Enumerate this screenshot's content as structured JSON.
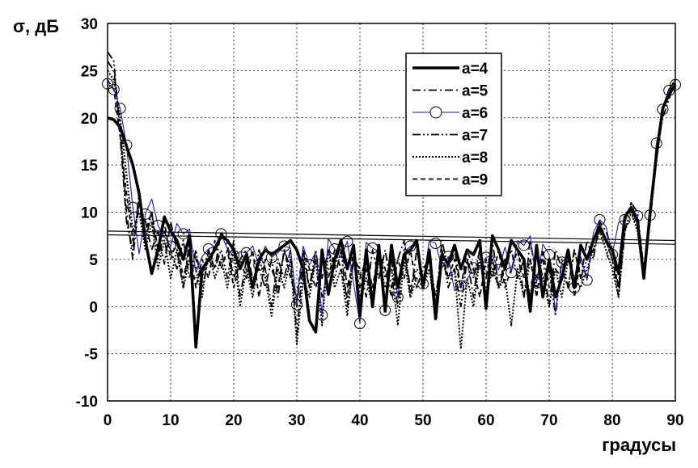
{
  "chart_data": {
    "type": "line",
    "xlabel": "градусы",
    "ylabel": "σ, дБ",
    "xlim": [
      0,
      90
    ],
    "ylim": [
      -10,
      30
    ],
    "xticks": [
      "0",
      "10",
      "20",
      "30",
      "40",
      "50",
      "60",
      "70",
      "80",
      "90"
    ],
    "yticks": [
      "-10",
      "-5",
      "0",
      "5",
      "10",
      "15",
      "20",
      "25",
      "30"
    ],
    "grid": true,
    "legend_position": "top-right",
    "series": [
      {
        "name": "a=4",
        "style": "solid-thick",
        "color": "#000000",
        "x": [
          0,
          1,
          2,
          3,
          4,
          5,
          6,
          7,
          8,
          9,
          10,
          11,
          12,
          13,
          14,
          15,
          16,
          17,
          18,
          19,
          20,
          21,
          22,
          23,
          24,
          25,
          26,
          27,
          28,
          29,
          30,
          31,
          32,
          33,
          34,
          35,
          36,
          37,
          38,
          39,
          40,
          41,
          42,
          43,
          44,
          45,
          46,
          47,
          48,
          49,
          50,
          51,
          52,
          53,
          54,
          55,
          56,
          57,
          58,
          59,
          60,
          61,
          62,
          63,
          64,
          65,
          66,
          67,
          68,
          69,
          70,
          71,
          72,
          73,
          74,
          75,
          76,
          77,
          78,
          79,
          80,
          81,
          82,
          83,
          84,
          85,
          86,
          87,
          88,
          89,
          90
        ],
        "y": [
          20,
          19.8,
          19,
          17,
          15,
          12,
          7,
          3.5,
          6,
          9.5,
          8,
          7,
          5,
          7.5,
          -4.3,
          4,
          5,
          6,
          7.5,
          7,
          6,
          4,
          5.5,
          2,
          5,
          6,
          5.5,
          6,
          6.5,
          7,
          6,
          4,
          -1.5,
          -2.7,
          6,
          1.3,
          5,
          7,
          4,
          6.5,
          -1,
          6,
          0,
          6.5,
          -0.5,
          6.5,
          2,
          5.5,
          6,
          7,
          2,
          6,
          -1.3,
          5.5,
          4.5,
          6.5,
          4,
          6,
          5.5,
          7,
          -0.2,
          7.5,
          6,
          4,
          7,
          6,
          5,
          -0.5,
          6.5,
          1,
          5,
          1,
          3,
          6,
          2,
          6.5,
          5,
          7,
          8.5,
          7,
          6,
          3.5,
          9.5,
          10.5,
          9,
          3,
          10,
          16,
          21,
          22.5,
          23.5
        ]
      },
      {
        "name": "a=5",
        "style": "dash-dot",
        "color": "#000000",
        "x": [
          0,
          1,
          2,
          3,
          4,
          5,
          6,
          7,
          8,
          9,
          10,
          11,
          12,
          13,
          14,
          15,
          16,
          17,
          18,
          19,
          20,
          21,
          22,
          23,
          24,
          25,
          26,
          27,
          28,
          29,
          30,
          31,
          32,
          33,
          34,
          35,
          36,
          37,
          38,
          39,
          40,
          41,
          42,
          43,
          44,
          45,
          46,
          47,
          48,
          49,
          50,
          51,
          52,
          53,
          54,
          55,
          56,
          57,
          58,
          59,
          60,
          61,
          62,
          63,
          64,
          65,
          66,
          67,
          68,
          69,
          70,
          71,
          72,
          73,
          74,
          75,
          76,
          77,
          78,
          79,
          80,
          81,
          82,
          83,
          84,
          85,
          86,
          87,
          88,
          89,
          90
        ],
        "y": [
          26,
          25,
          19,
          10,
          5,
          11,
          9,
          6,
          8,
          4.5,
          9,
          6,
          2,
          7,
          5,
          3,
          6,
          4,
          8,
          6.5,
          3,
          5,
          6,
          3,
          4,
          2,
          5,
          1,
          6,
          4,
          0,
          6,
          2,
          5,
          3,
          6,
          4,
          7,
          2,
          5,
          4,
          1,
          6,
          3,
          6,
          2,
          5,
          7,
          1,
          6,
          3,
          5,
          0,
          7,
          4,
          6,
          2,
          5,
          1,
          6,
          3,
          7,
          2,
          5,
          4,
          6,
          1,
          7,
          3,
          5,
          0,
          6,
          4,
          2,
          6,
          3,
          7,
          5,
          9,
          8,
          6,
          2,
          9,
          11,
          10,
          4,
          10,
          17,
          21,
          23,
          24
        ]
      },
      {
        "name": "a=6",
        "style": "solid-circle",
        "color": "#1a1aa6",
        "x": [
          0,
          1,
          2,
          3,
          4,
          5,
          6,
          7,
          8,
          9,
          10,
          11,
          12,
          13,
          14,
          15,
          16,
          17,
          18,
          19,
          20,
          21,
          22,
          23,
          24,
          25,
          26,
          27,
          28,
          29,
          30,
          31,
          32,
          33,
          34,
          35,
          36,
          37,
          38,
          39,
          40,
          41,
          42,
          43,
          44,
          45,
          46,
          47,
          48,
          49,
          50,
          51,
          52,
          53,
          54,
          55,
          56,
          57,
          58,
          59,
          60,
          61,
          62,
          63,
          64,
          65,
          66,
          67,
          68,
          69,
          70,
          71,
          72,
          73,
          74,
          75,
          76,
          77,
          78,
          79,
          80,
          81,
          82,
          83,
          84,
          85,
          86,
          87,
          88,
          89,
          90
        ],
        "y": [
          23.6,
          23.0,
          21.0,
          17.1,
          10.5,
          5.6,
          9.8,
          11.4,
          8.6,
          7.4,
          6.4,
          8.8,
          7.7,
          8.2,
          3.6,
          5.3,
          6.1,
          6.4,
          7.7,
          6.1,
          5.4,
          5.8,
          5.7,
          6.4,
          4.4,
          6.4,
          5.2,
          5.7,
          6.4,
          6.2,
          0.2,
          6.4,
          4.4,
          5.8,
          -0.9,
          7.2,
          6.1,
          5.2,
          6.9,
          2.5,
          -1.8,
          6.8,
          6.2,
          5.8,
          -0.4,
          6.5,
          1.0,
          5.7,
          6.4,
          6.7,
          2.4,
          7.0,
          6.7,
          4.1,
          5.3,
          1.7,
          2.2,
          2.9,
          4.1,
          4.1,
          5.2,
          5.4,
          3.9,
          6.3,
          3.6,
          7.0,
          6.5,
          7.5,
          2.5,
          6.6,
          5.5,
          -0.6,
          4.7,
          5.4,
          2.0,
          5.3,
          2.8,
          7.8,
          9.2,
          8.5,
          5.5,
          8.9,
          9.2,
          10.5,
          9.6,
          2.9,
          9.7,
          17.3,
          20.9,
          22.9,
          23.5
        ]
      },
      {
        "name": "a=7",
        "style": "dash-dot-dot",
        "color": "#000000",
        "x": [
          0,
          1,
          2,
          3,
          4,
          5,
          6,
          7,
          8,
          9,
          10,
          11,
          12,
          13,
          14,
          15,
          16,
          17,
          18,
          19,
          20,
          21,
          22,
          23,
          24,
          25,
          26,
          27,
          28,
          29,
          30,
          31,
          32,
          33,
          34,
          35,
          36,
          37,
          38,
          39,
          40,
          41,
          42,
          43,
          44,
          45,
          46,
          47,
          48,
          49,
          50,
          51,
          52,
          53,
          54,
          55,
          56,
          57,
          58,
          59,
          60,
          61,
          62,
          63,
          64,
          65,
          66,
          67,
          68,
          69,
          70,
          71,
          72,
          73,
          74,
          75,
          76,
          77,
          78,
          79,
          80,
          81,
          82,
          83,
          84,
          85,
          86,
          87,
          88,
          89,
          90
        ],
        "y": [
          27,
          26,
          18,
          9,
          6,
          12,
          7,
          10,
          5,
          8,
          6,
          4,
          7,
          3,
          6,
          2,
          5,
          4,
          6,
          3,
          7,
          1,
          5,
          2,
          6,
          4,
          0,
          5,
          3,
          6,
          -3,
          5,
          2,
          6,
          1,
          4,
          3,
          6,
          0,
          5,
          2,
          4,
          1,
          6,
          3,
          5,
          0,
          6,
          2,
          4,
          3,
          5,
          1,
          6,
          2,
          4,
          0,
          5,
          3,
          6,
          1,
          5,
          2,
          4,
          6,
          3,
          5,
          1,
          6,
          3,
          4,
          -1,
          5,
          2,
          6,
          3,
          5,
          6,
          8,
          7,
          5,
          1,
          8,
          10.5,
          9,
          3,
          9,
          16,
          20,
          22,
          24
        ]
      },
      {
        "name": "a=8",
        "style": "dotted",
        "color": "#000000",
        "x": [
          0,
          1,
          2,
          3,
          4,
          5,
          6,
          7,
          8,
          9,
          10,
          11,
          12,
          13,
          14,
          15,
          16,
          17,
          18,
          19,
          20,
          21,
          22,
          23,
          24,
          25,
          26,
          27,
          28,
          29,
          30,
          31,
          32,
          33,
          34,
          35,
          36,
          37,
          38,
          39,
          40,
          41,
          42,
          43,
          44,
          45,
          46,
          47,
          48,
          49,
          50,
          51,
          52,
          53,
          54,
          55,
          56,
          57,
          58,
          59,
          60,
          61,
          62,
          63,
          64,
          65,
          66,
          67,
          68,
          69,
          70,
          71,
          72,
          73,
          74,
          75,
          76,
          77,
          78,
          79,
          80,
          81,
          82,
          83,
          84,
          85,
          86,
          87,
          88,
          89,
          90
        ],
        "y": [
          25,
          24,
          20,
          14,
          8,
          10,
          6,
          9,
          4,
          7,
          3,
          6,
          2,
          5,
          4,
          1,
          6,
          3,
          5,
          2,
          6,
          0,
          4,
          1,
          5,
          3,
          -1,
          4,
          2,
          5,
          -4,
          3,
          1,
          5,
          -2,
          6,
          2,
          4,
          -1,
          5,
          1,
          3,
          0,
          5,
          2,
          4,
          -2,
          5,
          1,
          3,
          2,
          4,
          -1,
          5,
          3,
          4,
          -4.5,
          3,
          0,
          5,
          1,
          4,
          2,
          3,
          -2,
          4,
          1,
          5,
          2,
          3,
          0,
          4,
          1,
          5,
          3,
          2,
          4,
          6,
          8,
          6,
          4,
          1,
          8,
          10,
          8,
          3,
          9,
          16,
          21,
          23,
          24
        ]
      },
      {
        "name": "a=9",
        "style": "dashed",
        "color": "#000000",
        "x": [
          0,
          1,
          2,
          3,
          4,
          5,
          6,
          7,
          8,
          9,
          10,
          11,
          12,
          13,
          14,
          15,
          16,
          17,
          18,
          19,
          20,
          21,
          22,
          23,
          24,
          25,
          26,
          27,
          28,
          29,
          30,
          31,
          32,
          33,
          34,
          35,
          36,
          37,
          38,
          39,
          40,
          41,
          42,
          43,
          44,
          45,
          46,
          47,
          48,
          49,
          50,
          51,
          52,
          53,
          54,
          55,
          56,
          57,
          58,
          59,
          60,
          61,
          62,
          63,
          64,
          65,
          66,
          67,
          68,
          69,
          70,
          71,
          72,
          73,
          74,
          75,
          76,
          77,
          78,
          79,
          80,
          81,
          82,
          83,
          84,
          85,
          86,
          87,
          88,
          89,
          90
        ],
        "y": [
          24,
          23,
          18,
          12,
          7,
          11,
          8,
          10,
          6,
          9,
          5,
          7,
          3,
          6,
          2,
          5,
          3,
          7,
          4,
          6,
          2,
          5,
          3,
          6,
          1,
          5,
          4,
          2,
          6,
          3,
          1,
          6,
          4,
          2,
          5,
          3,
          6,
          4,
          1,
          6,
          3,
          5,
          2,
          6,
          4,
          1,
          5,
          3,
          6,
          2,
          4,
          5,
          0,
          6,
          3,
          5,
          2,
          6,
          4,
          1,
          5,
          3,
          6,
          2,
          4,
          6,
          3,
          5,
          1,
          6,
          2,
          4,
          3,
          6,
          1,
          5,
          3,
          7,
          9,
          7,
          5,
          2,
          9,
          11,
          9,
          3,
          10,
          17,
          21,
          23,
          24
        ]
      }
    ],
    "reference_lines": [
      {
        "x": [
          0,
          90
        ],
        "y": [
          8.0,
          7.0
        ]
      },
      {
        "x": [
          0,
          90
        ],
        "y": [
          7.6,
          6.6
        ]
      }
    ]
  }
}
